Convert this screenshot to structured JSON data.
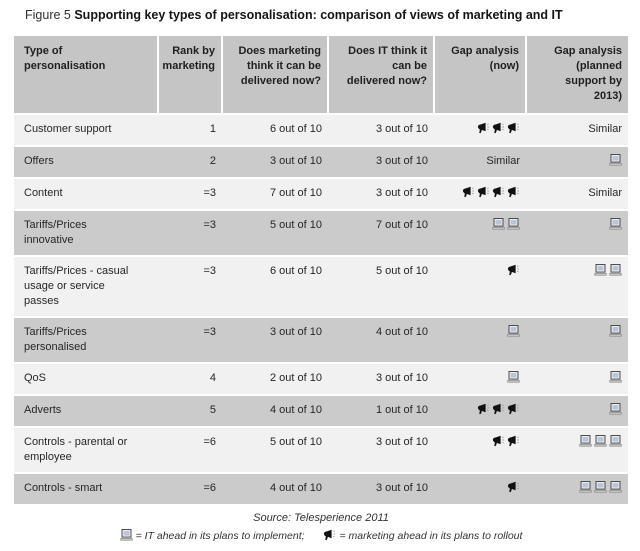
{
  "title": {
    "prefix": "Figure 5",
    "text": "Supporting key types of personalisation: comparison of views of marketing and IT"
  },
  "table": {
    "columns": [
      {
        "label": "Type of\npersonalisation"
      },
      {
        "label": "Rank by\nmarketing"
      },
      {
        "label": "Does marketing\nthink it can be\ndelivered now?"
      },
      {
        "label": "Does IT think it\ncan be\ndelivered now?"
      },
      {
        "label": "Gap analysis\n(now)"
      },
      {
        "label": "Gap analysis\n(planned\nsupport by\n2013)"
      }
    ],
    "rows": [
      {
        "type": "Customer support",
        "rank": "1",
        "marketing_now": "6 out of 10",
        "it_now": "3 out of 10",
        "gap_now": {
          "icon": "marketing",
          "count": 3
        },
        "gap_2013": {
          "text": "Similar"
        }
      },
      {
        "type": "Offers",
        "rank": "2",
        "marketing_now": "3 out of 10",
        "it_now": "3 out of 10",
        "gap_now": {
          "text": "Similar"
        },
        "gap_2013": {
          "icon": "it",
          "count": 1
        }
      },
      {
        "type": "Content",
        "rank": "=3",
        "marketing_now": "7 out of 10",
        "it_now": "3 out of 10",
        "gap_now": {
          "icon": "marketing",
          "count": 4
        },
        "gap_2013": {
          "text": "Similar"
        }
      },
      {
        "type": "Tariffs/Prices\ninnovative",
        "rank": "=3",
        "marketing_now": "5 out of 10",
        "it_now": "7 out of 10",
        "gap_now": {
          "icon": "it",
          "count": 2
        },
        "gap_2013": {
          "icon": "it",
          "count": 1
        }
      },
      {
        "type": "Tariffs/Prices - casual\nusage or service\npasses",
        "rank": "=3",
        "marketing_now": "6 out of 10",
        "it_now": "5 out of 10",
        "gap_now": {
          "icon": "marketing",
          "count": 1
        },
        "gap_2013": {
          "icon": "it",
          "count": 2
        }
      },
      {
        "type": "Tariffs/Prices\npersonalised",
        "rank": "=3",
        "marketing_now": "3 out of 10",
        "it_now": "4 out of 10",
        "gap_now": {
          "icon": "it",
          "count": 1
        },
        "gap_2013": {
          "icon": "it",
          "count": 1
        }
      },
      {
        "type": "QoS",
        "rank": "4",
        "marketing_now": "2 out of 10",
        "it_now": "3 out of 10",
        "gap_now": {
          "icon": "it",
          "count": 1
        },
        "gap_2013": {
          "icon": "it",
          "count": 1
        }
      },
      {
        "type": "Adverts",
        "rank": "5",
        "marketing_now": "4 out of 10",
        "it_now": "1 out of 10",
        "gap_now": {
          "icon": "marketing",
          "count": 3
        },
        "gap_2013": {
          "icon": "it",
          "count": 1
        }
      },
      {
        "type": "Controls - parental or\nemployee",
        "rank": "=6",
        "marketing_now": "5 out of 10",
        "it_now": "3 out of 10",
        "gap_now": {
          "icon": "marketing",
          "count": 2
        },
        "gap_2013": {
          "icon": "it",
          "count": 3
        }
      },
      {
        "type": "Controls - smart",
        "rank": "=6",
        "marketing_now": "4 out of 10",
        "it_now": "3 out of 10",
        "gap_now": {
          "icon": "marketing",
          "count": 1
        },
        "gap_2013": {
          "icon": "it",
          "count": 3
        }
      }
    ]
  },
  "footer": {
    "source": "Source: Telesperience 2011",
    "legend": [
      {
        "icon": "it",
        "text": "= IT ahead in its plans to implement;"
      },
      {
        "icon": "marketing",
        "text": "= marketing ahead in its plans to rollout"
      }
    ]
  },
  "icons": {
    "it": "computer-icon",
    "marketing": "megaphone-icon"
  },
  "colors": {
    "header_bg": "#c5c5c5",
    "row_dark": "#cbcbcb",
    "row_light": "#f1f1f1",
    "icon_black": "#111111"
  }
}
